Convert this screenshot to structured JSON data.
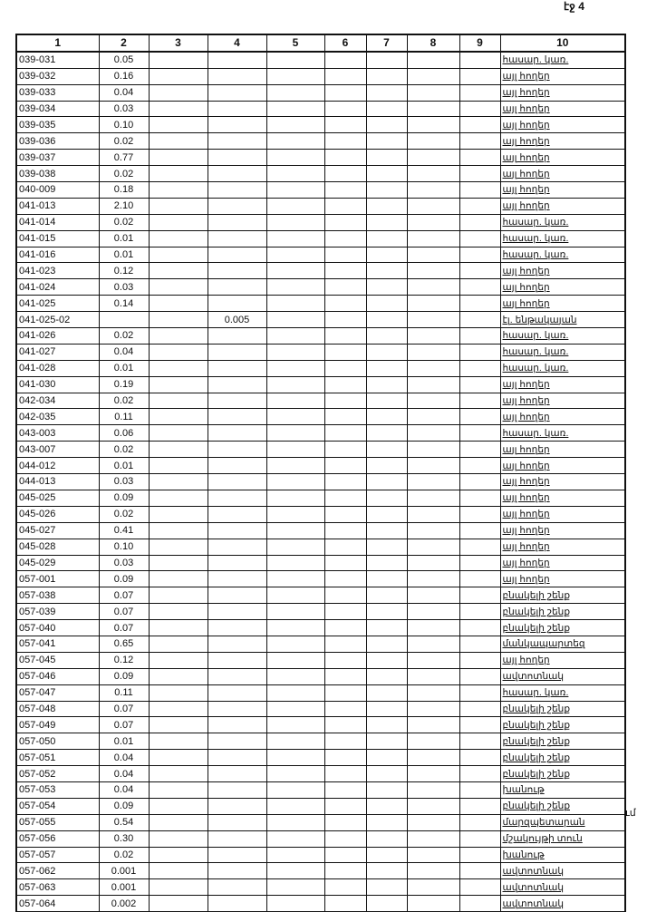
{
  "page_label": "էջ 4",
  "margin_note": "ւմ",
  "headers": [
    "1",
    "2",
    "3",
    "4",
    "5",
    "6",
    "7",
    "8",
    "9",
    "10"
  ],
  "rows": [
    [
      "039-031",
      "0.05",
      "",
      "",
      "",
      "",
      "",
      "",
      "",
      "հասար. կառ."
    ],
    [
      "039-032",
      "0.16",
      "",
      "",
      "",
      "",
      "",
      "",
      "",
      "այլ հողեր"
    ],
    [
      "039-033",
      "0.04",
      "",
      "",
      "",
      "",
      "",
      "",
      "",
      "այլ հողեր"
    ],
    [
      "039-034",
      "0.03",
      "",
      "",
      "",
      "",
      "",
      "",
      "",
      "այլ հողեր"
    ],
    [
      "039-035",
      "0.10",
      "",
      "",
      "",
      "",
      "",
      "",
      "",
      "այլ հողեր"
    ],
    [
      "039-036",
      "0.02",
      "",
      "",
      "",
      "",
      "",
      "",
      "",
      "այլ հողեր"
    ],
    [
      "039-037",
      "0.77",
      "",
      "",
      "",
      "",
      "",
      "",
      "",
      "այլ հողեր"
    ],
    [
      "039-038",
      "0.02",
      "",
      "",
      "",
      "",
      "",
      "",
      "",
      "այլ հողեր"
    ],
    [
      "040-009",
      "0.18",
      "",
      "",
      "",
      "",
      "",
      "",
      "",
      "այլ հողեր"
    ],
    [
      "041-013",
      "2.10",
      "",
      "",
      "",
      "",
      "",
      "",
      "",
      "այլ հողեր"
    ],
    [
      "041-014",
      "0.02",
      "",
      "",
      "",
      "",
      "",
      "",
      "",
      "հասար. կառ."
    ],
    [
      "041-015",
      "0.01",
      "",
      "",
      "",
      "",
      "",
      "",
      "",
      "հասար. կառ."
    ],
    [
      "041-016",
      "0.01",
      "",
      "",
      "",
      "",
      "",
      "",
      "",
      "հասար. կառ."
    ],
    [
      "041-023",
      "0.12",
      "",
      "",
      "",
      "",
      "",
      "",
      "",
      "այլ հողեր"
    ],
    [
      "041-024",
      "0.03",
      "",
      "",
      "",
      "",
      "",
      "",
      "",
      "այլ հողեր"
    ],
    [
      "041-025",
      "0.14",
      "",
      "",
      "",
      "",
      "",
      "",
      "",
      "այլ հողեր"
    ],
    [
      "041-025-02",
      "",
      "",
      "0.005",
      "",
      "",
      "",
      "",
      "",
      "էլ. ենթակայան"
    ],
    [
      "041-026",
      "0.02",
      "",
      "",
      "",
      "",
      "",
      "",
      "",
      "հասար. կառ."
    ],
    [
      "041-027",
      "0.04",
      "",
      "",
      "",
      "",
      "",
      "",
      "",
      "հասար. կառ."
    ],
    [
      "041-028",
      "0.01",
      "",
      "",
      "",
      "",
      "",
      "",
      "",
      "հասար. կառ."
    ],
    [
      "041-030",
      "0.19",
      "",
      "",
      "",
      "",
      "",
      "",
      "",
      "այլ հողեր"
    ],
    [
      "042-034",
      "0.02",
      "",
      "",
      "",
      "",
      "",
      "",
      "",
      "այլ հողեր"
    ],
    [
      "042-035",
      "0.11",
      "",
      "",
      "",
      "",
      "",
      "",
      "",
      "այլ հողեր"
    ],
    [
      "043-003",
      "0.06",
      "",
      "",
      "",
      "",
      "",
      "",
      "",
      "հասար. կառ."
    ],
    [
      "043-007",
      "0.02",
      "",
      "",
      "",
      "",
      "",
      "",
      "",
      "այլ հողեր"
    ],
    [
      "044-012",
      "0.01",
      "",
      "",
      "",
      "",
      "",
      "",
      "",
      "այլ հողեր"
    ],
    [
      "044-013",
      "0.03",
      "",
      "",
      "",
      "",
      "",
      "",
      "",
      "այլ հողեր"
    ],
    [
      "045-025",
      "0.09",
      "",
      "",
      "",
      "",
      "",
      "",
      "",
      "այլ հողեր"
    ],
    [
      "045-026",
      "0.02",
      "",
      "",
      "",
      "",
      "",
      "",
      "",
      "այլ հողեր"
    ],
    [
      "045-027",
      "0.41",
      "",
      "",
      "",
      "",
      "",
      "",
      "",
      "այլ հողեր"
    ],
    [
      "045-028",
      "0.10",
      "",
      "",
      "",
      "",
      "",
      "",
      "",
      "այլ հողեր"
    ],
    [
      "045-029",
      "0.03",
      "",
      "",
      "",
      "",
      "",
      "",
      "",
      "այլ հողեր"
    ],
    [
      "057-001",
      "0.09",
      "",
      "",
      "",
      "",
      "",
      "",
      "",
      "այլ հողեր"
    ],
    [
      "057-038",
      "0.07",
      "",
      "",
      "",
      "",
      "",
      "",
      "",
      "բնակելի շենք"
    ],
    [
      "057-039",
      "0.07",
      "",
      "",
      "",
      "",
      "",
      "",
      "",
      "բնակելի շենք"
    ],
    [
      "057-040",
      "0.07",
      "",
      "",
      "",
      "",
      "",
      "",
      "",
      "բնակելի շենք"
    ],
    [
      "057-041",
      "0.65",
      "",
      "",
      "",
      "",
      "",
      "",
      "",
      "մանկապարտեզ"
    ],
    [
      "057-045",
      "0.12",
      "",
      "",
      "",
      "",
      "",
      "",
      "",
      "այլ հողեր"
    ],
    [
      "057-046",
      "0.09",
      "",
      "",
      "",
      "",
      "",
      "",
      "",
      "ավտոտնակ"
    ],
    [
      "057-047",
      "0.11",
      "",
      "",
      "",
      "",
      "",
      "",
      "",
      "հասար. կառ."
    ],
    [
      "057-048",
      "0.07",
      "",
      "",
      "",
      "",
      "",
      "",
      "",
      "բնակելի շենք"
    ],
    [
      "057-049",
      "0.07",
      "",
      "",
      "",
      "",
      "",
      "",
      "",
      "բնակելի շենք"
    ],
    [
      "057-050",
      "0.01",
      "",
      "",
      "",
      "",
      "",
      "",
      "",
      "բնակելի շենք"
    ],
    [
      "057-051",
      "0.04",
      "",
      "",
      "",
      "",
      "",
      "",
      "",
      "բնակելի շենք"
    ],
    [
      "057-052",
      "0.04",
      "",
      "",
      "",
      "",
      "",
      "",
      "",
      "բնակելի շենք"
    ],
    [
      "057-053",
      "0.04",
      "",
      "",
      "",
      "",
      "",
      "",
      "",
      "խանութ"
    ],
    [
      "057-054",
      "0.09",
      "",
      "",
      "",
      "",
      "",
      "",
      "",
      "բնակելի շենք"
    ],
    [
      "057-055",
      "0.54",
      "",
      "",
      "",
      "",
      "",
      "",
      "",
      "մարզպետարան"
    ],
    [
      "057-056",
      "0.30",
      "",
      "",
      "",
      "",
      "",
      "",
      "",
      "մշակույթի տուն"
    ],
    [
      "057-057",
      "0.02",
      "",
      "",
      "",
      "",
      "",
      "",
      "",
      "խանութ"
    ],
    [
      "057-062",
      "0.001",
      "",
      "",
      "",
      "",
      "",
      "",
      "",
      "ավտոտնակ"
    ],
    [
      "057-063",
      "0.001",
      "",
      "",
      "",
      "",
      "",
      "",
      "",
      "ավտոտնակ"
    ],
    [
      "057-064",
      "0.002",
      "",
      "",
      "",
      "",
      "",
      "",
      "",
      "ավտոտնակ"
    ]
  ]
}
